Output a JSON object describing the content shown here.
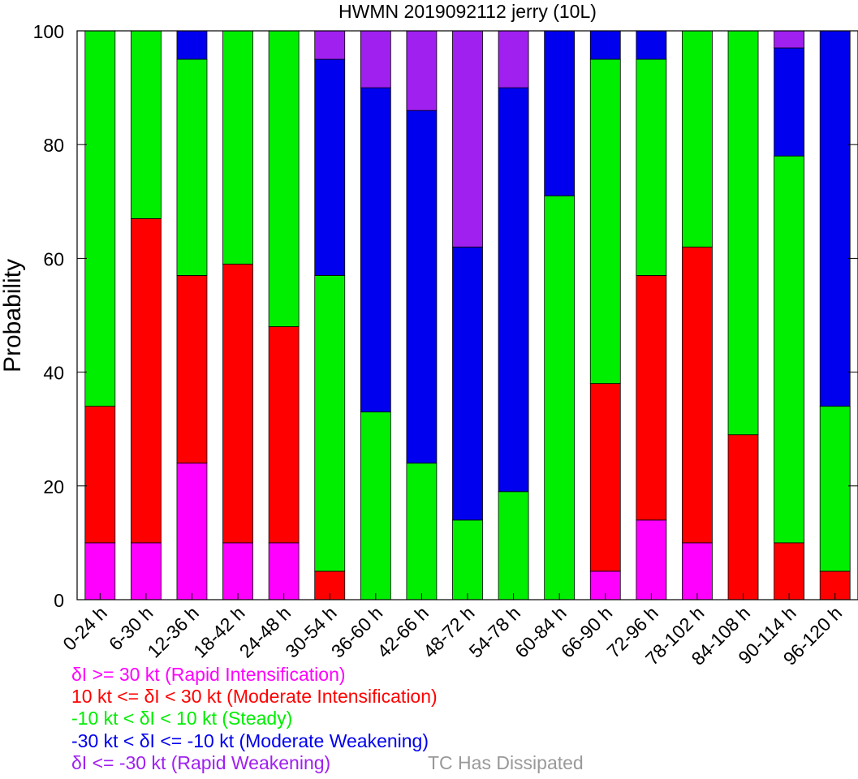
{
  "chart_data": {
    "type": "bar",
    "stacked": true,
    "title": "HWMN 2019092112 jerry (10L)",
    "xlabel": "",
    "ylabel": "Probability",
    "ylim": [
      0,
      100
    ],
    "yticks": [
      0,
      20,
      40,
      60,
      80,
      100
    ],
    "grid": false,
    "legend_position": "bottom",
    "categories": [
      "0-24 h",
      "6-30 h",
      "12-36 h",
      "18-42 h",
      "24-48 h",
      "30-54 h",
      "36-60 h",
      "42-66 h",
      "48-72 h",
      "54-78 h",
      "60-84 h",
      "66-90 h",
      "72-96 h",
      "78-102 h",
      "84-108 h",
      "90-114 h",
      "96-120 h"
    ],
    "series": [
      {
        "name": "δI >= 30 kt (Rapid Intensification)",
        "color": "#ff00ff",
        "values": [
          10,
          10,
          24,
          10,
          10,
          0,
          0,
          0,
          0,
          0,
          0,
          5,
          14,
          10,
          0,
          0,
          0
        ]
      },
      {
        "name": "10 kt <= δI < 30 kt (Moderate Intensification)",
        "color": "#ff0000",
        "values": [
          24,
          57,
          33,
          49,
          38,
          5,
          0,
          0,
          0,
          0,
          0,
          33,
          43,
          52,
          29,
          10,
          5
        ]
      },
      {
        "name": "-10 kt < δI < 10 kt (Steady)",
        "color": "#00ee00",
        "values": [
          66,
          33,
          38,
          41,
          52,
          52,
          33,
          24,
          14,
          19,
          71,
          57,
          38,
          38,
          71,
          68,
          29
        ]
      },
      {
        "name": "-30 kt < δI <= -10 kt (Moderate Weakening)",
        "color": "#0000ee",
        "values": [
          0,
          0,
          5,
          0,
          0,
          38,
          57,
          62,
          48,
          71,
          29,
          5,
          5,
          0,
          0,
          19,
          66
        ]
      },
      {
        "name": "δI <= -30 kt (Rapid Weakening)",
        "color": "#a020f0",
        "values": [
          0,
          0,
          0,
          0,
          0,
          5,
          10,
          14,
          38,
          10,
          0,
          0,
          0,
          0,
          0,
          3,
          0
        ]
      }
    ],
    "extra_legend": {
      "label": "TC Has Dissipated",
      "color": "#999999"
    }
  }
}
